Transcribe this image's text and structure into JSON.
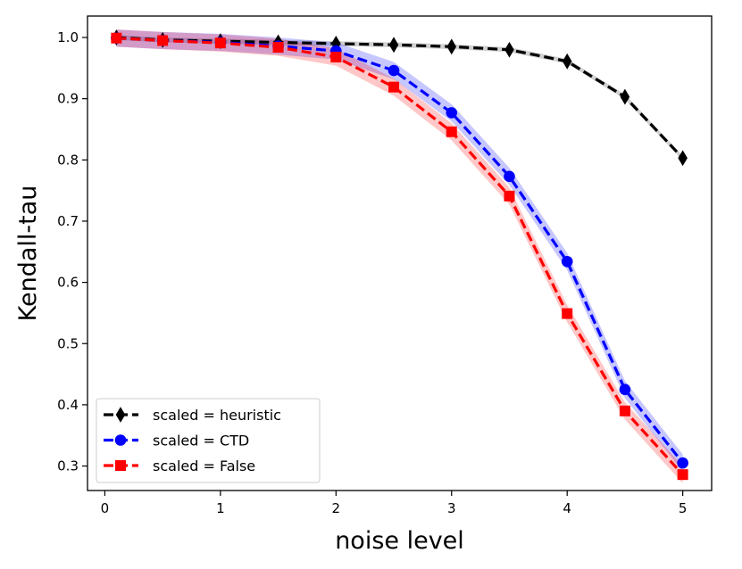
{
  "chart_data": {
    "type": "line",
    "title": "",
    "xlabel": "noise level",
    "ylabel": "Kendall-tau",
    "xlim": [
      -0.15,
      5.25
    ],
    "ylim": [
      0.26,
      1.035
    ],
    "xticks": [
      0,
      1,
      2,
      3,
      4,
      5
    ],
    "xtick_labels": [
      "0",
      "1",
      "2",
      "3",
      "4",
      "5"
    ],
    "yticks": [
      0.3,
      0.4,
      0.5,
      0.6,
      0.7,
      0.8,
      0.9,
      1.0
    ],
    "ytick_labels": [
      "0.3",
      "0.4",
      "0.5",
      "0.6",
      "0.7",
      "0.8",
      "0.9",
      "1.0"
    ],
    "x": [
      0.1,
      0.5,
      1.0,
      1.5,
      2.0,
      2.5,
      3.0,
      3.5,
      4.0,
      4.5,
      5.0
    ],
    "grid": false,
    "legend_position": "lower-left",
    "series": [
      {
        "name": "scaled = heuristic",
        "color": "#000000",
        "marker": "diamond",
        "values": [
          1.0,
          0.996,
          0.994,
          0.992,
          0.99,
          0.988,
          0.985,
          0.98,
          0.961,
          0.903,
          0.803
        ],
        "band": 0.004
      },
      {
        "name": "scaled = CTD",
        "color": "#0000ff",
        "marker": "circle",
        "values": [
          0.999,
          0.995,
          0.992,
          0.986,
          0.978,
          0.946,
          0.877,
          0.773,
          0.634,
          0.425,
          0.305
        ],
        "band": 0.014
      },
      {
        "name": "scaled = False",
        "color": "#ff0000",
        "marker": "square",
        "values": [
          0.999,
          0.995,
          0.991,
          0.984,
          0.968,
          0.919,
          0.846,
          0.741,
          0.549,
          0.39,
          0.286
        ],
        "band": 0.014
      }
    ]
  }
}
